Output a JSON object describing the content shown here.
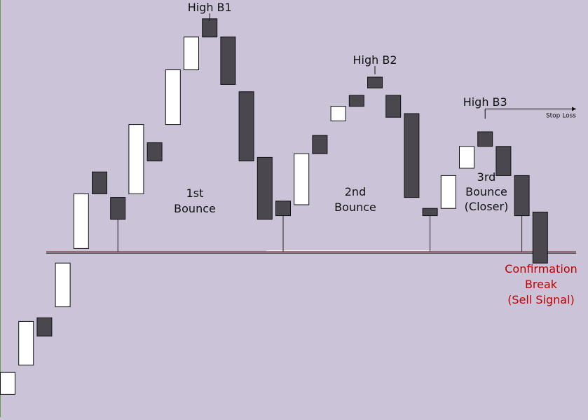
{
  "chart_data": {
    "type": "candlestick",
    "title": "",
    "xlabel": "",
    "ylabel": "",
    "ylim": [
      0,
      100
    ],
    "grid": false,
    "colors": {
      "background": "#cbc4d8",
      "bullish": "#ffffff",
      "bearish": "#4a474f",
      "support_line": "#7a2a2a",
      "signal_text": "#c00000"
    },
    "candles": [
      {
        "i": 0,
        "open": 3,
        "close": 9,
        "dir": "up"
      },
      {
        "i": 1,
        "open": 11,
        "close": 23,
        "dir": "up"
      },
      {
        "i": 2,
        "open": 24,
        "close": 19,
        "dir": "down"
      },
      {
        "i": 3,
        "open": 27,
        "close": 39,
        "dir": "up"
      },
      {
        "i": 4,
        "open": 43,
        "close": 58,
        "dir": "up"
      },
      {
        "i": 5,
        "open": 64,
        "close": 58,
        "dir": "down"
      },
      {
        "i": 6,
        "open": 57,
        "close": 51,
        "dir": "down"
      },
      {
        "i": 7,
        "open": 58,
        "close": 77,
        "dir": "up"
      },
      {
        "i": 8,
        "open": 72,
        "close": 67,
        "dir": "down"
      },
      {
        "i": 9,
        "open": 77,
        "close": 92,
        "dir": "up"
      },
      {
        "i": 10,
        "open": 92,
        "close": 101,
        "dir": "up"
      },
      {
        "i": 11,
        "open": 106,
        "close": 101,
        "dir": "down"
      },
      {
        "i": 12,
        "open": 101,
        "close": 88,
        "dir": "down"
      },
      {
        "i": 13,
        "open": 86,
        "close": 67,
        "dir": "down"
      },
      {
        "i": 14,
        "open": 68,
        "close": 51,
        "dir": "down"
      },
      {
        "i": 15,
        "open": 56,
        "close": 52,
        "dir": "down"
      },
      {
        "i": 16,
        "open": 55,
        "close": 69,
        "dir": "up"
      },
      {
        "i": 17,
        "open": 74,
        "close": 69,
        "dir": "down"
      },
      {
        "i": 18,
        "open": 78,
        "close": 82,
        "dir": "up"
      },
      {
        "i": 19,
        "open": 85,
        "close": 82,
        "dir": "down"
      },
      {
        "i": 20,
        "open": 90,
        "close": 87,
        "dir": "down"
      },
      {
        "i": 21,
        "open": 85,
        "close": 79,
        "dir": "down"
      },
      {
        "i": 22,
        "open": 80,
        "close": 57,
        "dir": "down"
      },
      {
        "i": 23,
        "open": 54,
        "close": 52,
        "dir": "down"
      },
      {
        "i": 24,
        "open": 54,
        "close": 63,
        "dir": "up"
      },
      {
        "i": 25,
        "open": 65,
        "close": 71,
        "dir": "up"
      },
      {
        "i": 26,
        "open": 75,
        "close": 71,
        "dir": "down"
      },
      {
        "i": 27,
        "open": 71,
        "close": 63,
        "dir": "down"
      },
      {
        "i": 28,
        "open": 63,
        "close": 52,
        "dir": "down"
      },
      {
        "i": 29,
        "open": 53,
        "close": 39,
        "dir": "down"
      }
    ],
    "support_level": 51,
    "stop_loss_level": 78,
    "annotations": [
      {
        "id": "high-b1",
        "text": "High B1",
        "candle": 11
      },
      {
        "id": "high-b2",
        "text": "High B2",
        "candle": 20
      },
      {
        "id": "high-b3",
        "text": "High B3",
        "candle": 26
      },
      {
        "id": "bounce-1",
        "lines": [
          "1st",
          "Bounce"
        ]
      },
      {
        "id": "bounce-2",
        "lines": [
          "2nd",
          "Bounce"
        ]
      },
      {
        "id": "bounce-3",
        "lines": [
          "3rd",
          "Bounce",
          "(Closer)"
        ]
      },
      {
        "id": "confirmation",
        "lines": [
          "Confirmation",
          "Break",
          "(Sell Signal)"
        ]
      },
      {
        "id": "stop-loss",
        "text": "Stop Loss"
      }
    ]
  }
}
